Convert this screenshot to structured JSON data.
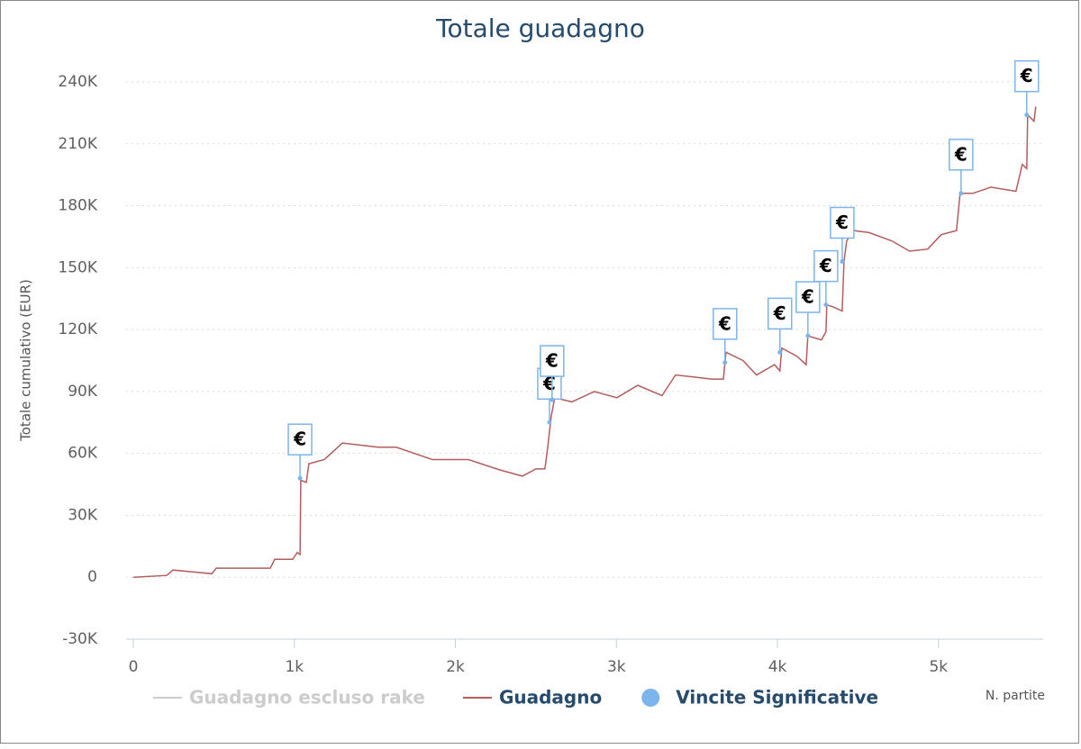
{
  "chart_data": {
    "type": "line",
    "title": "Totale guadagno",
    "y_label": "Totale cumulativo (EUR)",
    "x_label": "N. partite",
    "xlim": [
      -45,
      5650
    ],
    "ylim": [
      -30000,
      240000
    ],
    "xticks": [
      0,
      {
        "value": 1000,
        "label": "1k"
      },
      {
        "value": 2000,
        "label": "2k"
      },
      {
        "value": 3000,
        "label": "3k"
      },
      {
        "value": 4000,
        "label": "4k"
      },
      {
        "value": 5000,
        "label": "5k"
      }
    ],
    "yticks": [
      {
        "value": -30000,
        "label": "-30K"
      },
      0,
      {
        "value": 30000,
        "label": "30K"
      },
      {
        "value": 60000,
        "label": "60K"
      },
      {
        "value": 90000,
        "label": "90K"
      },
      {
        "value": 120000,
        "label": "120K"
      },
      {
        "value": 150000,
        "label": "150K"
      },
      {
        "value": 180000,
        "label": "180K"
      },
      {
        "value": 210000,
        "label": "210K"
      },
      {
        "value": 240000,
        "label": "240K"
      }
    ],
    "grid": true,
    "series": [
      {
        "name": "Guadagno escluso rake",
        "color": "#cccccc",
        "visible": false
      },
      {
        "name": "Guadagno",
        "color": "#b35d5d",
        "x": [
          0,
          207,
          246,
          487,
          515,
          850,
          878,
          990,
          1018,
          1035,
          1040,
          1074,
          1090,
          1186,
          1298,
          1521,
          1633,
          1857,
          2081,
          2276,
          2416,
          2500,
          2556,
          2573,
          2595,
          2617,
          2723,
          2863,
          3003,
          3132,
          3283,
          3367,
          3479,
          3591,
          3664,
          3680,
          3786,
          3870,
          3982,
          4015,
          4027,
          4122,
          4178,
          4189,
          4273,
          4301,
          4306,
          4346,
          4402,
          4413,
          4430,
          4474,
          4569,
          4709,
          4821,
          4933,
          5017,
          5112,
          5134,
          5213,
          5325,
          5481,
          5520,
          5548,
          5554,
          5593,
          5604
        ],
        "values": [
          0,
          900,
          3500,
          1700,
          4400,
          4400,
          8700,
          8700,
          12000,
          11000,
          47000,
          46000,
          55000,
          57000,
          65000,
          63000,
          63000,
          57000,
          57000,
          52000,
          49000,
          52500,
          52500,
          63000,
          78000,
          87000,
          85000,
          90000,
          87000,
          93000,
          88000,
          98000,
          97000,
          96000,
          96000,
          109000,
          105000,
          98000,
          103000,
          100000,
          111000,
          107000,
          103000,
          117000,
          115000,
          119000,
          132000,
          131000,
          129000,
          153000,
          163000,
          168000,
          167000,
          163000,
          158000,
          159000,
          166000,
          168000,
          186000,
          186000,
          189000,
          187000,
          200000,
          198000,
          224000,
          221000,
          228000
        ]
      },
      {
        "name": "Vincite Significative",
        "type": "scatter",
        "color": "#7cb5ec",
        "marker_label": "€",
        "x": [
          1035,
          2584,
          2600,
          3674,
          4015,
          4189,
          4301,
          4402,
          5140,
          5548
        ],
        "values": [
          48000,
          75000,
          86000,
          104000,
          109000,
          117000,
          132000,
          153000,
          186000,
          224000
        ]
      }
    ]
  }
}
